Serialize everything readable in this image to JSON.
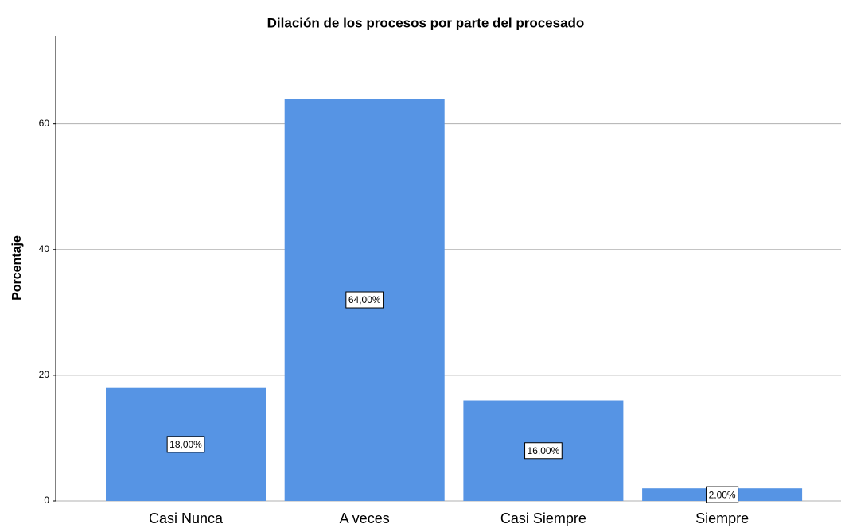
{
  "chart_data": {
    "type": "bar",
    "title": "Dilación de los procesos por parte del procesado",
    "y_label": "Porcentaje",
    "categories": [
      "Casi Nunca",
      "A veces",
      "Casi Siempre",
      "Siempre"
    ],
    "values": [
      18,
      64,
      16,
      2
    ],
    "value_labels": [
      "18,00%",
      "64,00%",
      "16,00%",
      "2,00%"
    ],
    "color": "#5694e4",
    "ylim": [
      0,
      74
    ],
    "yticks": [
      0,
      20,
      40,
      60
    ],
    "grid": true
  }
}
